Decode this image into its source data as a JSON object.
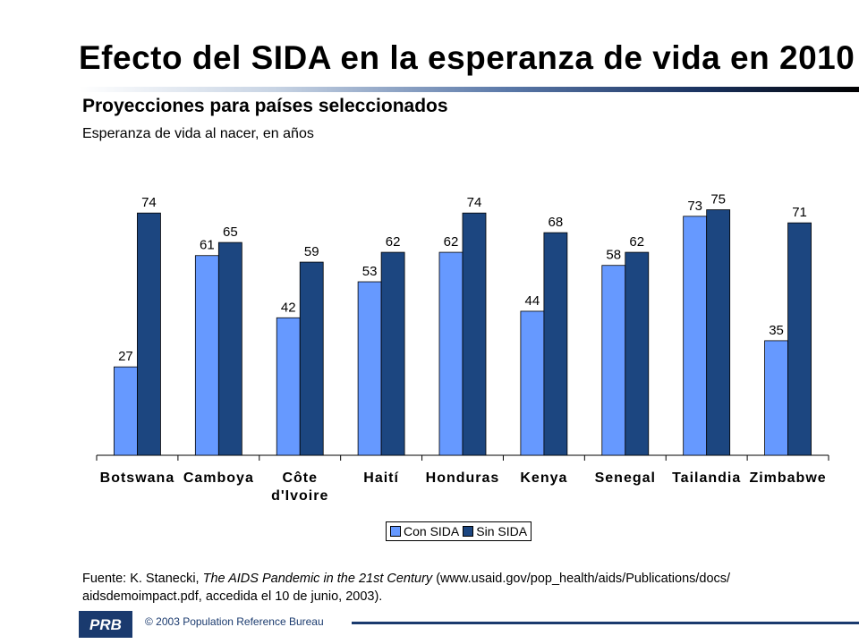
{
  "header": {
    "title": "Efecto del SIDA en la esperanza de vida en 2010",
    "subtitle": "Proyecciones para países seleccionados",
    "caption": "Esperanza de vida al nacer, en años"
  },
  "chart_data": {
    "type": "bar",
    "title": "Efecto del SIDA en la esperanza de vida en 2010",
    "subtitle": "Proyecciones para países seleccionados",
    "ylabel": "Esperanza de vida al nacer, en años",
    "xlabel": "",
    "ylim": [
      0,
      80
    ],
    "grid": false,
    "legend_position": "bottom",
    "categories": [
      [
        "Botswana"
      ],
      [
        "Camboya"
      ],
      [
        "Côte",
        "d'Ivoire"
      ],
      [
        "Haití"
      ],
      [
        "Honduras"
      ],
      [
        "Kenya"
      ],
      [
        "Senegal"
      ],
      [
        "Tailandia"
      ],
      [
        "Zimbabwe"
      ]
    ],
    "series": [
      {
        "name": "Con SIDA",
        "color": "#6699ff",
        "values": [
          27,
          61,
          42,
          53,
          62,
          44,
          58,
          73,
          35
        ]
      },
      {
        "name": "Sin SIDA",
        "color": "#1c4680",
        "values": [
          74,
          65,
          59,
          62,
          74,
          68,
          62,
          75,
          71
        ]
      }
    ]
  },
  "legend": {
    "items": [
      {
        "label": "Con SIDA",
        "color": "#6699ff"
      },
      {
        "label": "Sin SIDA",
        "color": "#1c4680"
      }
    ]
  },
  "source": {
    "prefix": "Fuente: K. Stanecki, ",
    "italic": "The AIDS Pandemic in the 21st Century",
    "suffix": " (www.usaid.gov/pop_health/aids/Publications/docs/ aidsdemoimpact.pdf, accedida el 10 de junio, 2003)."
  },
  "footer": {
    "logo_text": "PRB",
    "copyright": "© 2003 Population Reference Bureau"
  }
}
